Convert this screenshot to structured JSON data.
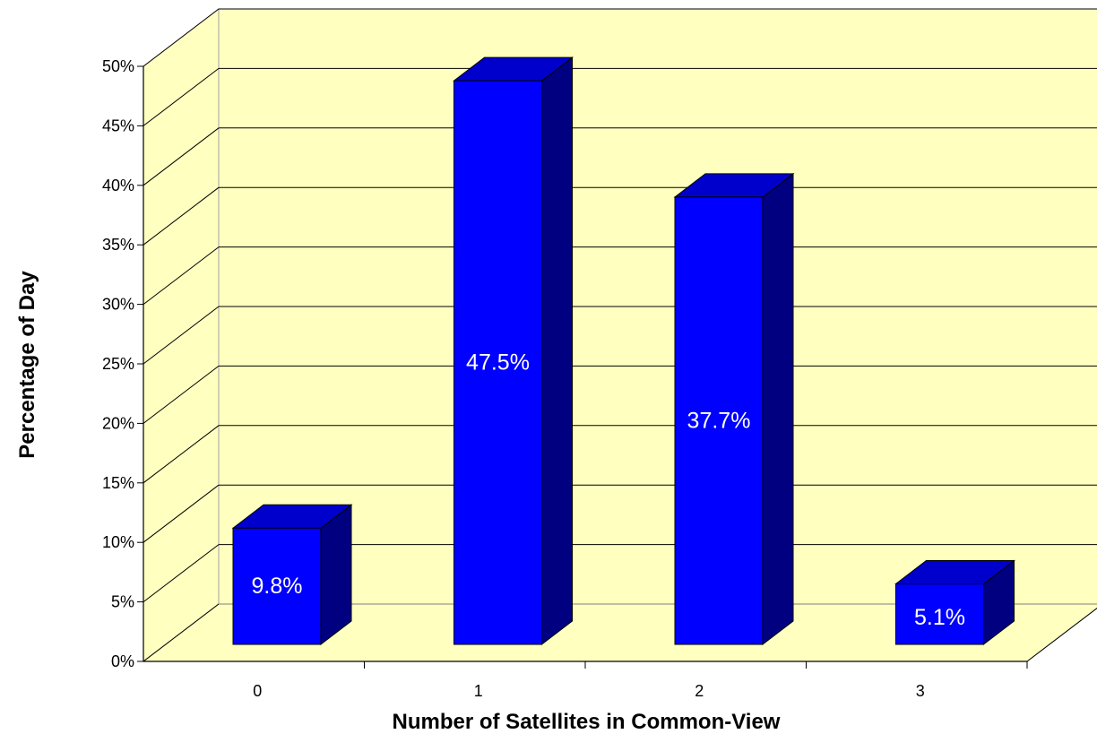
{
  "chart_data": {
    "type": "bar",
    "title": "",
    "xlabel": "Number of Satellites in Common-View",
    "ylabel": "Percentage of Day",
    "categories": [
      "0",
      "1",
      "2",
      "3"
    ],
    "values": [
      9.8,
      47.5,
      37.7,
      5.1
    ],
    "data_labels": [
      "9.8%",
      "47.5%",
      "37.7%",
      "5.1%"
    ],
    "ylim": [
      0,
      50
    ],
    "y_ticks": [
      0,
      5,
      10,
      15,
      20,
      25,
      30,
      35,
      40,
      45,
      50
    ],
    "y_tick_labels": [
      "0%",
      "5%",
      "10%",
      "15%",
      "20%",
      "25%",
      "30%",
      "35%",
      "40%",
      "45%",
      "50%"
    ],
    "grid": true,
    "legend": "none",
    "style": "3d",
    "colors": {
      "bar_front": "#0000ff",
      "bar_top": "#0000cc",
      "bar_side": "#000080",
      "wall": "#ffffc0",
      "floor": "#ffffc0",
      "data_label": "#ffffff"
    }
  }
}
